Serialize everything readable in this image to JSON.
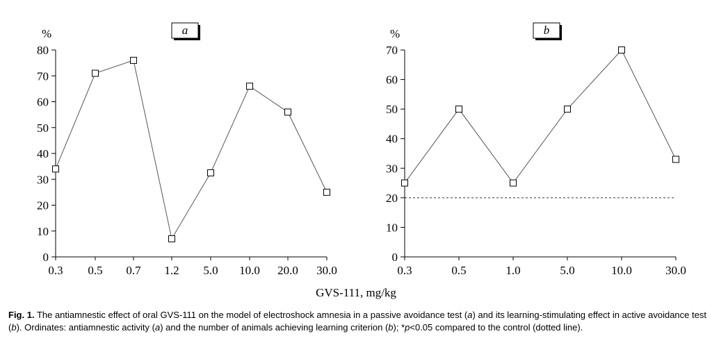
{
  "chart_data": [
    {
      "panel": "a",
      "type": "line",
      "ylabel": "%",
      "categories": [
        "0.3",
        "0.5",
        "0.7",
        "1.2",
        "5.0",
        "10.0",
        "20.0",
        "30.0"
      ],
      "values": [
        34,
        71,
        76,
        7,
        32.5,
        66,
        56,
        25
      ],
      "ylim": [
        0,
        80
      ],
      "yticks": [
        0,
        10,
        20,
        30,
        40,
        50,
        60,
        70,
        80
      ],
      "marker": "open-square",
      "grid": false
    },
    {
      "panel": "b",
      "type": "line",
      "ylabel": "%",
      "categories": [
        "0.3",
        "0.5",
        "1.0",
        "5.0",
        "10.0",
        "30.0"
      ],
      "values": [
        25,
        50,
        25,
        50,
        70,
        33
      ],
      "ylim": [
        0,
        70
      ],
      "yticks": [
        0,
        10,
        20,
        30,
        40,
        50,
        60,
        70
      ],
      "reference_line": 20,
      "marker": "open-square",
      "grid": false
    }
  ],
  "xlabel": "GVS-111, mg/kg",
  "caption": {
    "fig_label": "Fig. 1.",
    "t1": " The antiamnestic effect of oral GVS-111 on the model of electroshock amnesia in a passive avoidance test (",
    "i1": "a",
    "t2": ") and its learning-stimulating effect in active avoidance test (",
    "i2": "b",
    "t3": "). Ordinates: antiamnestic activity (",
    "i3": "a",
    "t4": ") and the number of animals achieving learning criterion (",
    "i4": "b",
    "t5": "); *",
    "i5": "p",
    "t6": "<0.05 compared to the control (dotted line)."
  }
}
